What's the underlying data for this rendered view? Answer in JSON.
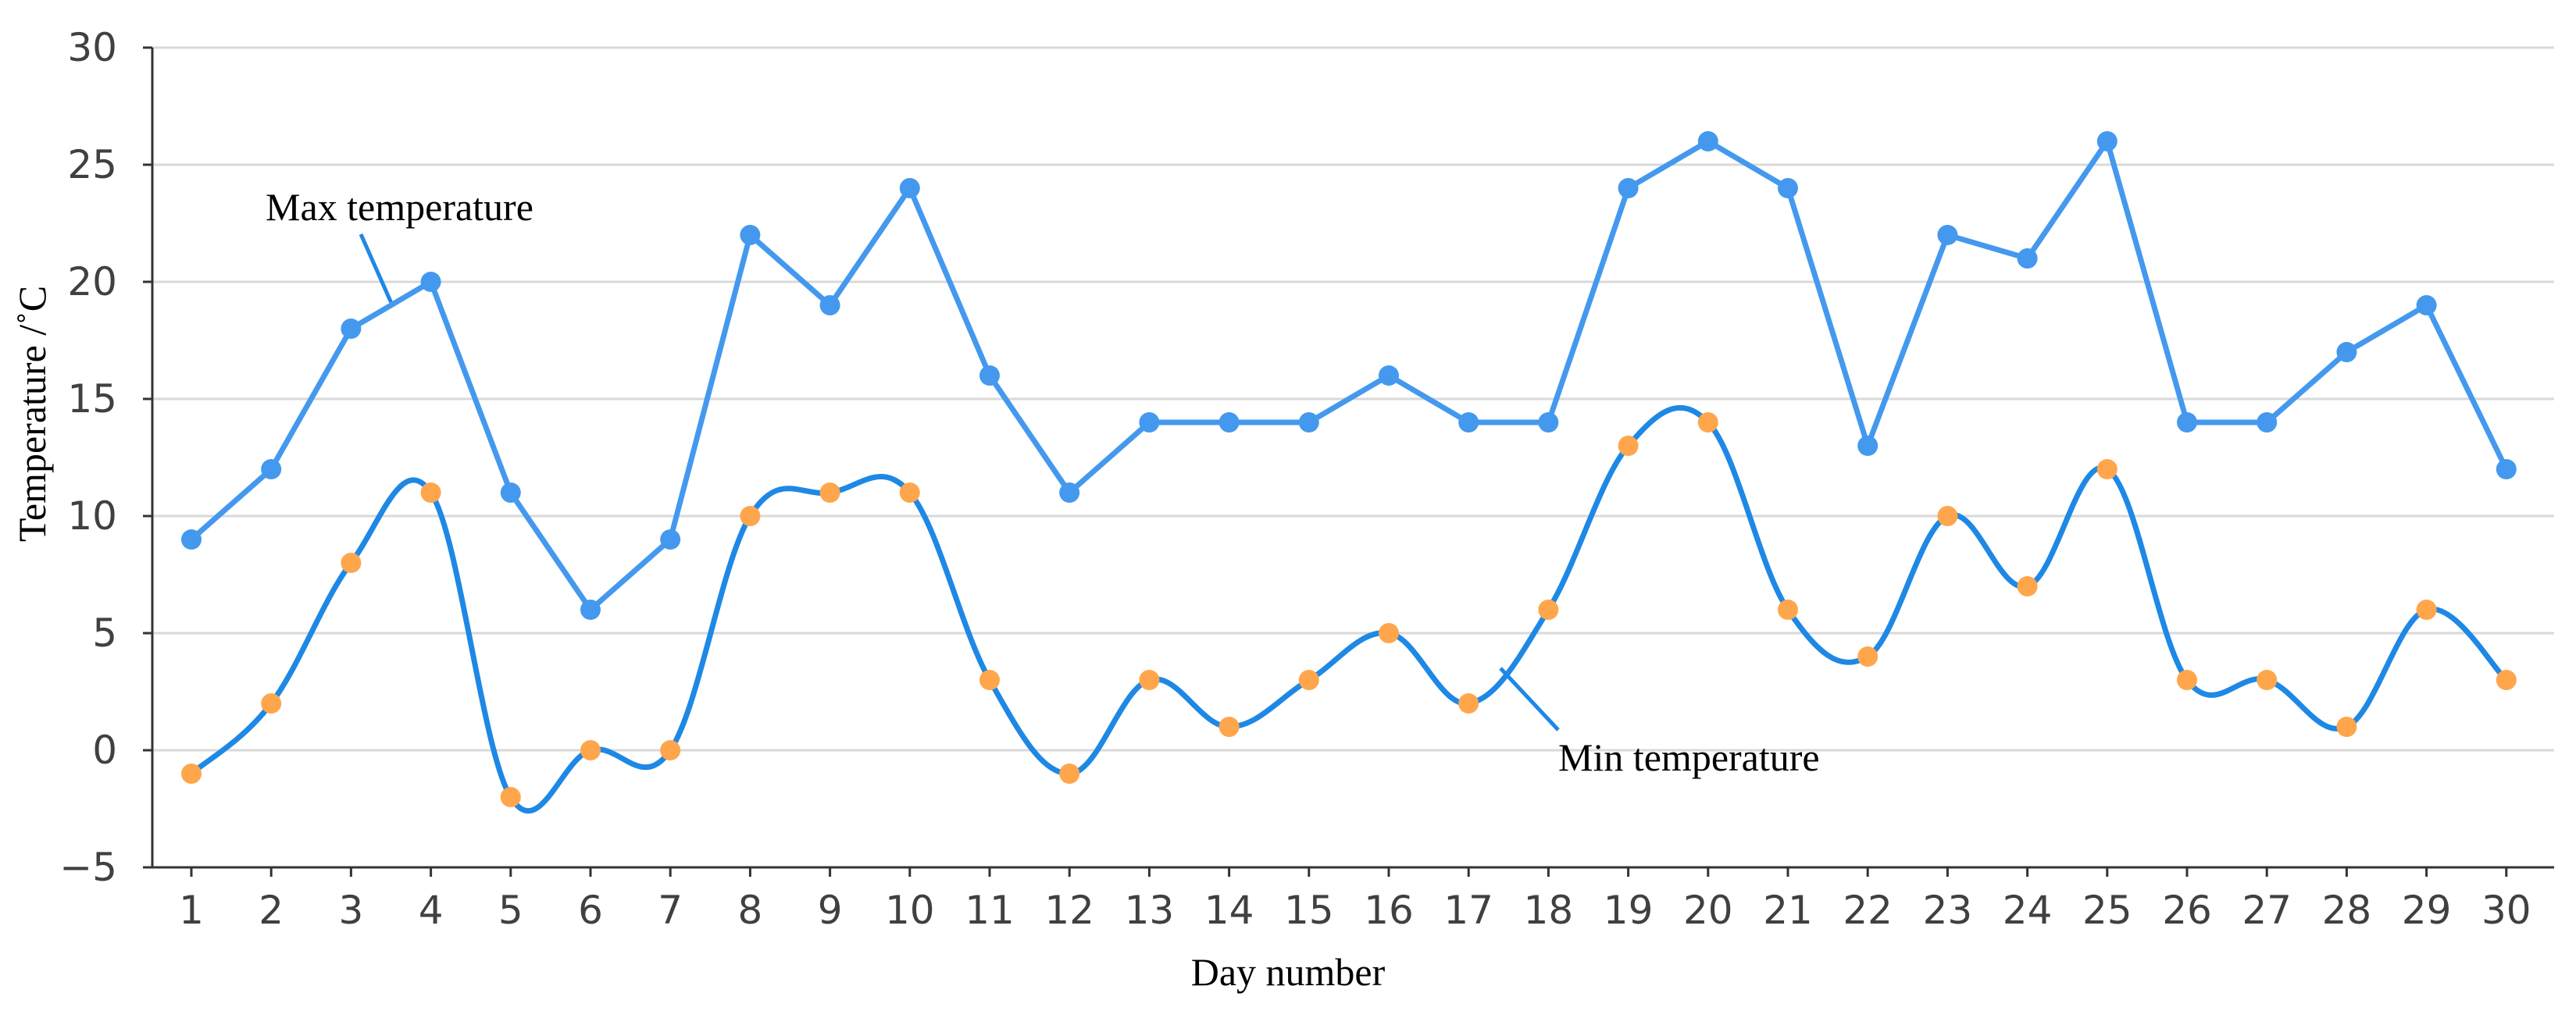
{
  "chart_data": {
    "type": "line",
    "xlabel": "Day number",
    "ylabel": "Temperature /˚C",
    "ylim": [
      -5,
      30
    ],
    "yticks": [
      -5,
      0,
      5,
      10,
      15,
      20,
      25,
      30
    ],
    "ytick_labels": [
      "−5",
      "0",
      "5",
      "10",
      "15",
      "20",
      "25",
      "30"
    ],
    "x": [
      1,
      2,
      3,
      4,
      5,
      6,
      7,
      8,
      9,
      10,
      11,
      12,
      13,
      14,
      15,
      16,
      17,
      18,
      19,
      20,
      21,
      22,
      23,
      24,
      25,
      26,
      27,
      28,
      29,
      30
    ],
    "grid": true,
    "series": [
      {
        "name": "Max temperature",
        "color": "#4499ee",
        "marker_color": "#4499ee",
        "smooth": false,
        "values": [
          9,
          12,
          18,
          20,
          11,
          6,
          9,
          22,
          19,
          24,
          16,
          11,
          14,
          14,
          14,
          16,
          14,
          14,
          24,
          26,
          24,
          13,
          22,
          21,
          26,
          14,
          14,
          17,
          19,
          12
        ]
      },
      {
        "name": "Min temperature",
        "color": "#1e88e5",
        "marker_color": "#ffa64d",
        "smooth": true,
        "values": [
          -1,
          2,
          8,
          11,
          -2,
          0,
          0,
          10,
          11,
          11,
          3,
          -1,
          3,
          1,
          3,
          5,
          2,
          6,
          13,
          14,
          6,
          4,
          10,
          7,
          12,
          3,
          3,
          1,
          6,
          3
        ]
      }
    ],
    "annotations": [
      {
        "text": "Max temperature",
        "series": 0
      },
      {
        "text": "Min temperature",
        "series": 1
      }
    ]
  }
}
